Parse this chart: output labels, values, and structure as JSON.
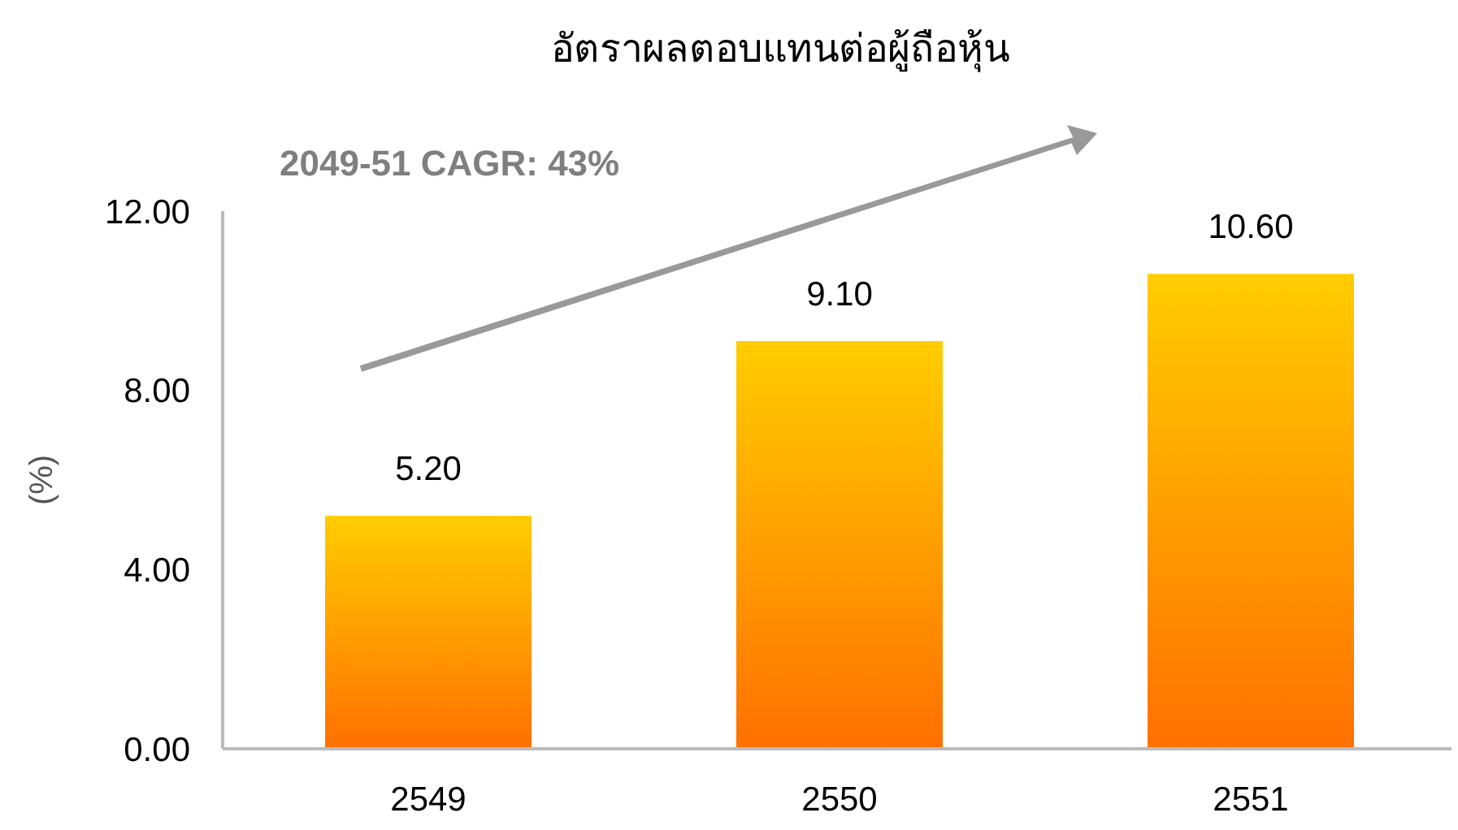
{
  "chart_data": {
    "type": "bar",
    "title": "อัตราผลตอบแทนต่อผู้ถือหุ้น",
    "ylabel": "(%)",
    "categories": [
      "2549",
      "2550",
      "2551"
    ],
    "values": [
      5.2,
      9.1,
      10.6
    ],
    "color": "#ff9a00",
    "ylim": [
      0,
      12
    ],
    "yticks": [
      {
        "value": 0,
        "label": "0.00"
      },
      {
        "value": 4,
        "label": "4.00"
      },
      {
        "value": 8,
        "label": "8.00"
      },
      {
        "value": 12,
        "label": "12.00"
      }
    ],
    "value_labels": [
      "5.20",
      "9.10",
      "10.60"
    ],
    "annotations": [
      "2049-51 CAGR: 43%"
    ]
  }
}
